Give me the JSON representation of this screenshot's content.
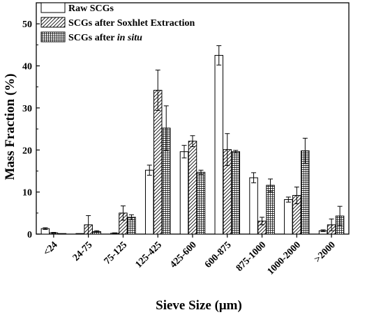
{
  "chart_data": {
    "type": "bar",
    "xlabel": "Sieve Size (μm)",
    "ylabel": "Mass Fraction (%)",
    "ylim": [
      0,
      55
    ],
    "yticks": [
      0,
      10,
      20,
      30,
      40,
      50
    ],
    "categories": [
      "<24",
      "24-75",
      "75-125",
      "125-425",
      "425-600",
      "600-875",
      "875-1000",
      "1000-2000",
      ">2000"
    ],
    "legend_position": "top-left",
    "series": [
      {
        "name": "Raw SCGs",
        "legend_parts": [
          "Raw SCGs"
        ],
        "pattern": "none",
        "values": [
          1.3,
          0.0,
          0.2,
          15.2,
          19.6,
          42.5,
          13.4,
          8.2,
          0.8
        ],
        "errors": [
          0.2,
          0.0,
          0.1,
          1.2,
          1.5,
          2.3,
          1.2,
          0.6,
          0.2
        ]
      },
      {
        "name": "SCGs after Soxhlet Extraction",
        "legend_parts": [
          "SCGs after Soxhlet Extraction"
        ],
        "pattern": "diagonal",
        "values": [
          0.3,
          2.2,
          5.0,
          34.2,
          22.1,
          20.1,
          3.1,
          9.2,
          2.2
        ],
        "errors": [
          0.1,
          2.2,
          1.7,
          4.8,
          1.3,
          3.8,
          0.9,
          2.0,
          1.4
        ]
      },
      {
        "name": "SCGs after in situ",
        "legend_parts": [
          "SCGs after ",
          "in situ"
        ],
        "pattern": "grid",
        "values": [
          0.1,
          0.6,
          4.0,
          25.2,
          14.7,
          19.6,
          11.6,
          19.8,
          4.3
        ],
        "errors": [
          0.0,
          0.2,
          0.6,
          5.3,
          0.5,
          0.3,
          1.5,
          3.0,
          2.3
        ]
      }
    ]
  }
}
